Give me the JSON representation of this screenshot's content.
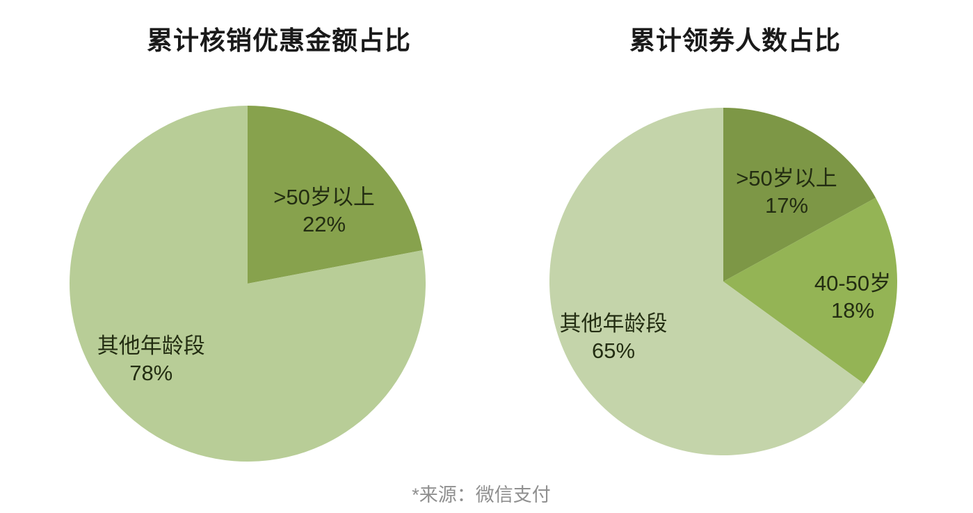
{
  "page": {
    "background": "#ffffff"
  },
  "chart_data": [
    {
      "type": "pie",
      "title": "累计核销优惠金额占比",
      "start_angle_deg": 0,
      "direction": "clockwise",
      "legend_position": "none",
      "slices": [
        {
          "label": ">50岁以上",
          "value_pct": 22,
          "color": "#87a24d",
          "label_pos": [
            71.5,
            29.5
          ]
        },
        {
          "label": "其他年龄段",
          "value_pct": 78,
          "color": "#b8cd97",
          "label_pos": [
            22.9,
            71.3
          ]
        }
      ]
    },
    {
      "type": "pie",
      "title": "累计领券人数占比",
      "start_angle_deg": 0,
      "direction": "clockwise",
      "legend_position": "none",
      "slices": [
        {
          "label": ">50岁以上",
          "value_pct": 17,
          "color": "#7d9746",
          "label_pos": [
            68.2,
            24.2
          ]
        },
        {
          "label": "40-50岁",
          "value_pct": 18,
          "color": "#94b455",
          "label_pos": [
            87.2,
            54.4
          ]
        },
        {
          "label": "其他年龄段",
          "value_pct": 65,
          "color": "#c4d4aa",
          "label_pos": [
            18.4,
            66.0
          ]
        }
      ]
    }
  ],
  "footer": {
    "source_note": "*来源：微信支付"
  },
  "text_colors": {
    "title": "#1a1a1a",
    "label": "#232d12",
    "source": "#8f8f8f"
  }
}
